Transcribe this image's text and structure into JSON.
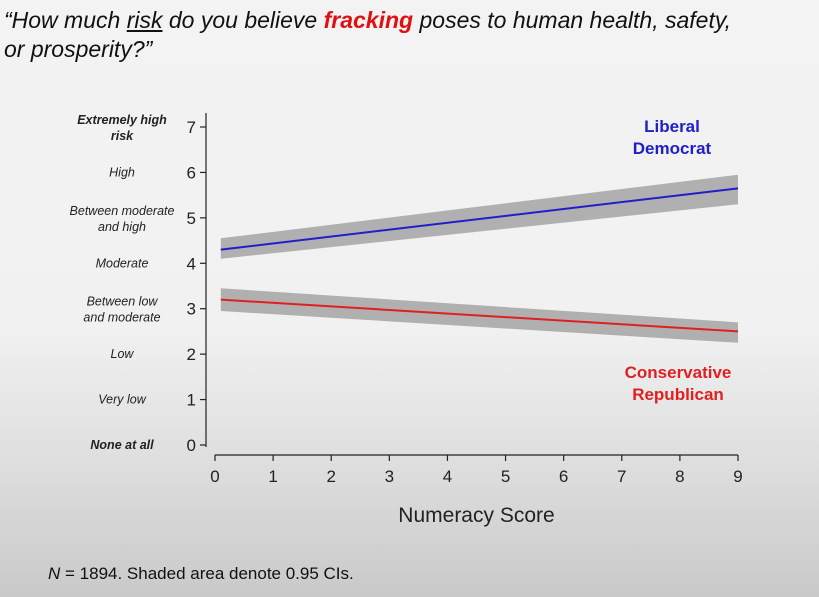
{
  "question": {
    "part1": "“How much ",
    "risk_word": "risk",
    "part2": " do you believe ",
    "fracking_word": "fracking",
    "part3": " poses to human health, safety,",
    "part4": "or prosperity?”"
  },
  "footnote": {
    "n_label": "N",
    "text": " = 1894.  Shaded area denote 0.95 CIs."
  },
  "colors": {
    "liberal": "#2020c8",
    "conservative": "#e02020",
    "ci_band": "#9a9a9a"
  },
  "chart_data": {
    "type": "line",
    "xlabel": "Numeracy Score",
    "ylabel": "",
    "xlim": [
      0,
      9
    ],
    "ylim": [
      0,
      7
    ],
    "x_ticks": [
      0,
      1,
      2,
      3,
      4,
      5,
      6,
      7,
      8,
      9
    ],
    "y_ticks": [
      0,
      1,
      2,
      3,
      4,
      5,
      6,
      7
    ],
    "y_tick_text_labels": [
      {
        "value": 7,
        "text": "Extremely high risk",
        "bold": true
      },
      {
        "value": 6,
        "text": "High",
        "bold": false
      },
      {
        "value": 5,
        "text": "Between moderate and high",
        "bold": false
      },
      {
        "value": 4,
        "text": "Moderate",
        "bold": false
      },
      {
        "value": 3,
        "text": "Between low and moderate",
        "bold": false
      },
      {
        "value": 2,
        "text": "Low",
        "bold": false
      },
      {
        "value": 1,
        "text": "Very low",
        "bold": false
      },
      {
        "value": 0,
        "text": "None at all",
        "bold": true
      }
    ],
    "series": [
      {
        "name": "Liberal Democrat",
        "x": [
          0.1,
          9
        ],
        "y": [
          4.3,
          5.65
        ],
        "ci_lower": [
          4.1,
          5.3
        ],
        "ci_upper": [
          4.55,
          5.95
        ]
      },
      {
        "name": "Conservative Republican",
        "x": [
          0.1,
          9
        ],
        "y": [
          3.2,
          2.5
        ],
        "ci_lower": [
          2.95,
          2.25
        ],
        "ci_upper": [
          3.45,
          2.7
        ]
      }
    ],
    "grid": false
  }
}
